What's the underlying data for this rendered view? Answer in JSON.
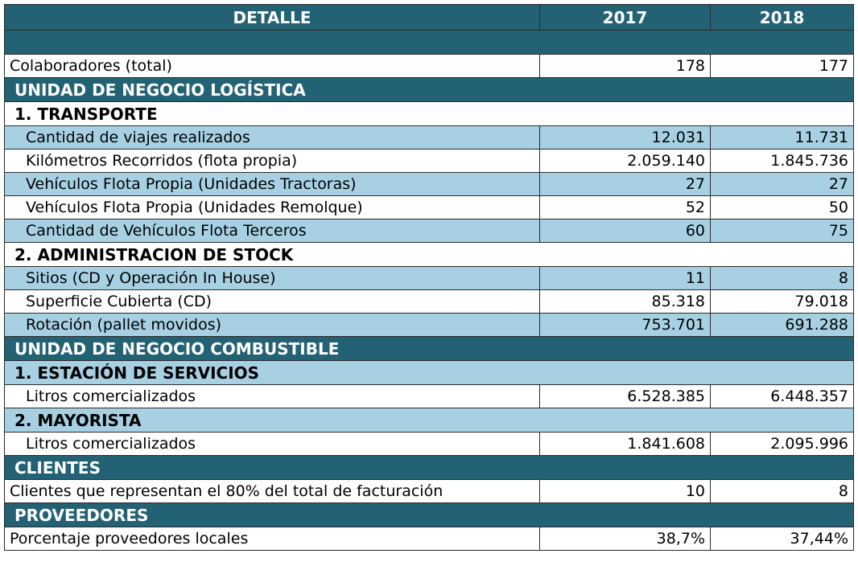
{
  "header": {
    "detalle": "DETALLE",
    "y1": "2017",
    "y2": "2018"
  },
  "colaboradores": {
    "label": "Colaboradores (total)",
    "v1": "178",
    "v2": "177"
  },
  "logistica": {
    "title": "UNIDAD DE NEGOCIO LOGÍSTICA",
    "transporte": {
      "title": "1.  TRANSPORTE",
      "rows": [
        {
          "label": "Cantidad de viajes realizados",
          "v1": "12.031",
          "v2": "11.731"
        },
        {
          "label": "Kilómetros Recorridos (flota propia)",
          "v1": "2.059.140",
          "v2": "1.845.736"
        },
        {
          "label": "Vehículos Flota Propia (Unidades Tractoras)",
          "v1": "27",
          "v2": "27"
        },
        {
          "label": "Vehículos Flota Propia (Unidades Remolque)",
          "v1": "52",
          "v2": "50"
        },
        {
          "label": "Cantidad de Vehículos Flota Terceros",
          "v1": "60",
          "v2": "75"
        }
      ]
    },
    "stock": {
      "title": "2.  ADMINISTRACION DE STOCK",
      "rows": [
        {
          "label": "Sitios (CD y Operación In House)",
          "v1": "11",
          "v2": "8"
        },
        {
          "label": "Superficie Cubierta (CD)",
          "v1": "85.318",
          "v2": "79.018"
        },
        {
          "label": "Rotación (pallet movidos)",
          "v1": "753.701",
          "v2": "691.288"
        }
      ]
    }
  },
  "combustible": {
    "title": "UNIDAD DE NEGOCIO COMBUSTIBLE",
    "estacion": {
      "title": "1.  ESTACIÓN DE SERVICIOS",
      "rows": [
        {
          "label": "Litros comercializados",
          "v1": "6.528.385",
          "v2": "6.448.357"
        }
      ]
    },
    "mayorista": {
      "title": "2.  MAYORISTA",
      "rows": [
        {
          "label": "Litros comercializados",
          "v1": "1.841.608",
          "v2": "2.095.996"
        }
      ]
    }
  },
  "clientes": {
    "title": "CLIENTES",
    "rows": [
      {
        "label": "Clientes que representan el 80% del total de facturación",
        "v1": "10",
        "v2": "8"
      }
    ]
  },
  "proveedores": {
    "title": "PROVEEDORES",
    "rows": [
      {
        "label": "Porcentaje proveedores locales",
        "v1": "38,7%",
        "v2": "37,44%"
      }
    ]
  }
}
